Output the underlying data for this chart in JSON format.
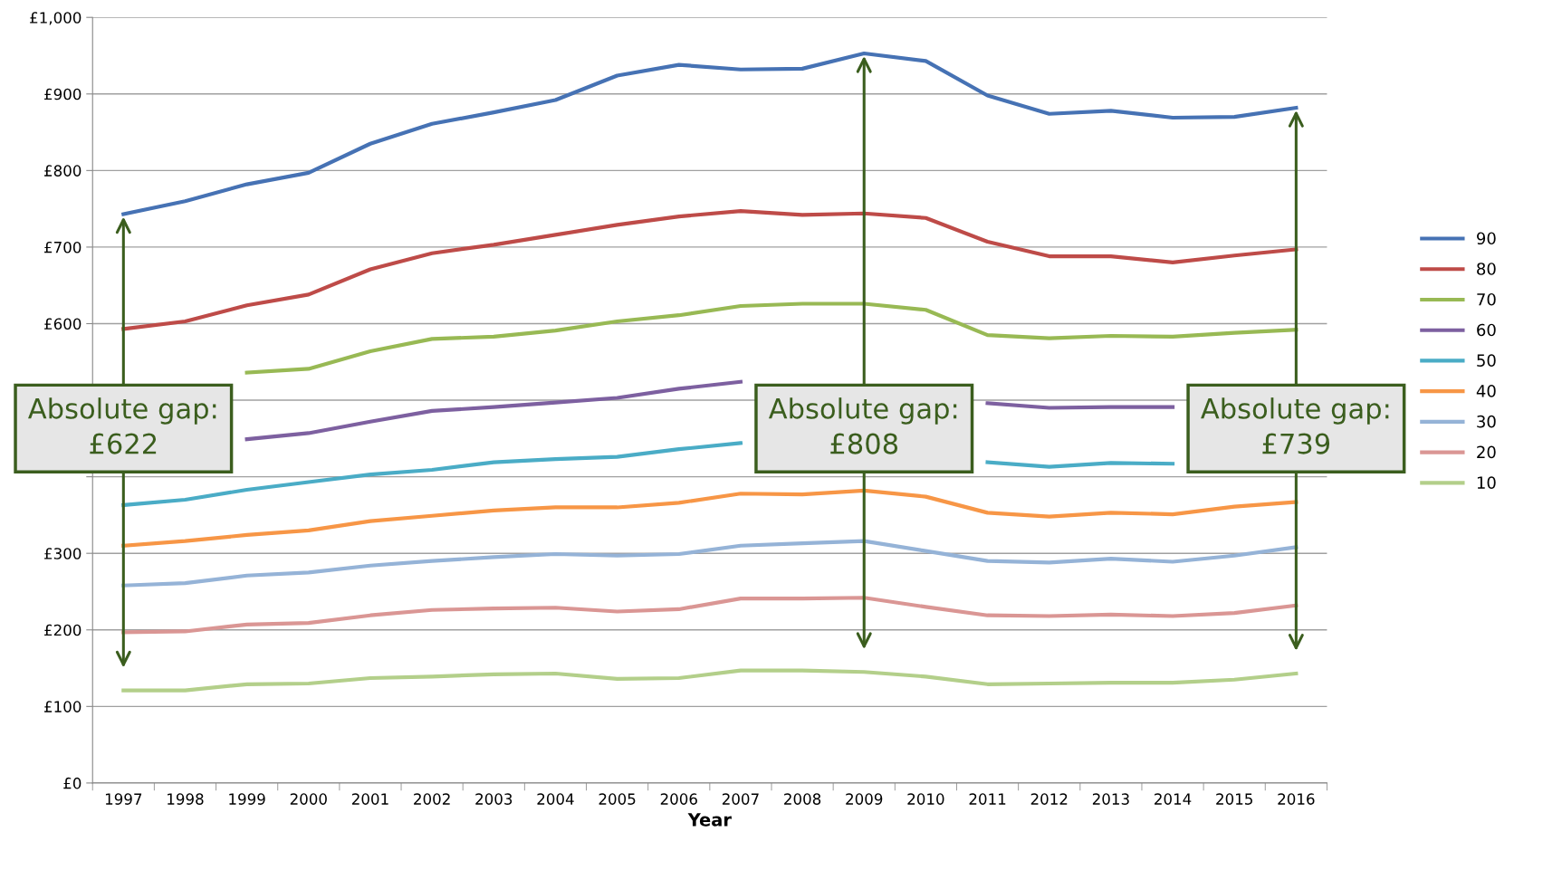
{
  "chart_data": {
    "type": "line",
    "xlabel": "Year",
    "categories": [
      "1997",
      "1998",
      "1999",
      "2000",
      "2001",
      "2002",
      "2003",
      "2004",
      "2005",
      "2006",
      "2007",
      "2008",
      "2009",
      "2010",
      "2011",
      "2012",
      "2013",
      "2014",
      "2015",
      "2016"
    ],
    "series": [
      {
        "name": "90",
        "color": "#4672b4",
        "values": [
          743,
          760,
          782,
          797,
          835,
          861,
          876,
          892,
          924,
          938,
          932,
          933,
          953,
          943,
          898,
          874,
          878,
          869,
          870,
          882
        ]
      },
      {
        "name": "80",
        "color": "#be4b48",
        "values": [
          593,
          603,
          624,
          638,
          671,
          692,
          703,
          716,
          729,
          740,
          747,
          742,
          744,
          738,
          707,
          688,
          688,
          680,
          689,
          697
        ]
      },
      {
        "name": "70",
        "color": "#98b954",
        "values": [
          null,
          null,
          536,
          541,
          564,
          580,
          583,
          591,
          603,
          611,
          623,
          626,
          626,
          618,
          585,
          581,
          584,
          583,
          588,
          592
        ]
      },
      {
        "name": "60",
        "color": "#7d60a0",
        "values": [
          null,
          null,
          449,
          457,
          472,
          486,
          491,
          497,
          503,
          515,
          524,
          null,
          null,
          null,
          496,
          490,
          491,
          491,
          null,
          null
        ]
      },
      {
        "name": "50",
        "color": "#4aacc6",
        "values": [
          363,
          370,
          383,
          393,
          403,
          409,
          419,
          423,
          426,
          436,
          444,
          null,
          null,
          null,
          419,
          413,
          418,
          417,
          null,
          null
        ]
      },
      {
        "name": "40",
        "color": "#f79646",
        "values": [
          310,
          316,
          324,
          330,
          342,
          349,
          356,
          360,
          360,
          366,
          378,
          377,
          382,
          374,
          353,
          348,
          353,
          351,
          361,
          367
        ]
      },
      {
        "name": "30",
        "color": "#95b3d7",
        "values": [
          258,
          261,
          271,
          275,
          284,
          290,
          295,
          299,
          297,
          299,
          310,
          313,
          316,
          303,
          290,
          288,
          293,
          289,
          297,
          308
        ]
      },
      {
        "name": "20",
        "color": "#da9694",
        "values": [
          197,
          198,
          207,
          209,
          219,
          226,
          228,
          229,
          224,
          227,
          241,
          241,
          242,
          230,
          219,
          218,
          220,
          218,
          222,
          232
        ]
      },
      {
        "name": "10",
        "color": "#b3cf8a",
        "values": [
          121,
          121,
          129,
          130,
          137,
          139,
          142,
          143,
          136,
          137,
          147,
          147,
          145,
          139,
          129,
          130,
          131,
          131,
          135,
          143
        ]
      }
    ],
    "ylim": [
      0,
      1000
    ],
    "yticks": [
      {
        "value": 0,
        "label": "£0"
      },
      {
        "value": 100,
        "label": "£100"
      },
      {
        "value": 200,
        "label": "£200"
      },
      {
        "value": 300,
        "label": "£300"
      },
      {
        "value": 400,
        "label": null
      },
      {
        "value": 500,
        "label": null
      },
      {
        "value": 600,
        "label": "£600"
      },
      {
        "value": 700,
        "label": "£700"
      },
      {
        "value": 800,
        "label": "£800"
      },
      {
        "value": 900,
        "label": "£900"
      },
      {
        "value": 1000,
        "label": "£1,000"
      }
    ],
    "grid": "y",
    "legend": "right",
    "marker": "none",
    "line_style": "solid",
    "annotations": [
      {
        "text": "Absolute gap:\n£622",
        "x": "1997",
        "y": 743
      },
      {
        "text": "Absolute gap:\n£808",
        "x": "2009",
        "y": 953
      },
      {
        "text": "Absolute gap:\n£739",
        "x": "2016",
        "y": 882
      }
    ]
  }
}
